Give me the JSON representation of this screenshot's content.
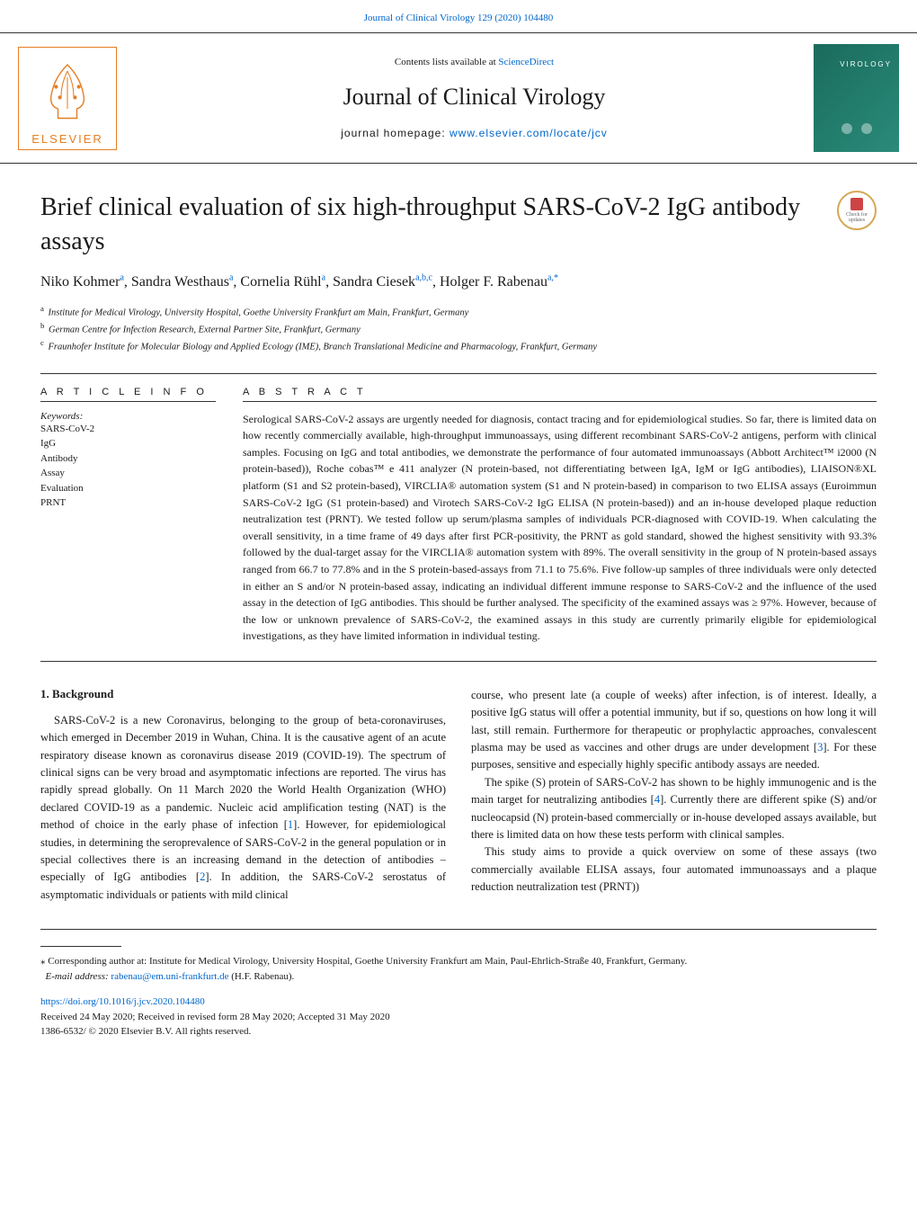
{
  "colors": {
    "link": "#0066cc",
    "elsevier_orange": "#e67e22",
    "cover_teal": "#2a8b7a",
    "badge_gold": "#d4a853",
    "text": "#1a1a1a"
  },
  "top_link": {
    "text": "Journal of Clinical Virology 129 (2020) 104480",
    "href": "#"
  },
  "header": {
    "publisher_logo_text": "ELSEVIER",
    "contents_prefix": "Contents lists available at ",
    "contents_link": "ScienceDirect",
    "journal_title": "Journal of Clinical Virology",
    "homepage_prefix": "journal homepage: ",
    "homepage_link": "www.elsevier.com/locate/jcv",
    "cover_label": "VIROLOGY"
  },
  "article": {
    "title": "Brief clinical evaluation of six high-throughput SARS-CoV-2 IgG antibody assays",
    "badge": {
      "line1": "Check for",
      "line2": "updates"
    },
    "authors_html": "Niko Kohmer<sup>a</sup>, Sandra Westhaus<sup>a</sup>, Cornelia Rühl<sup>a</sup>, Sandra Ciesek<sup>a,b,c</sup>, Holger F. Rabenau<sup>a,</sup>",
    "author_asterisk": "*",
    "affiliations": [
      {
        "sup": "a",
        "text": "Institute for Medical Virology, University Hospital, Goethe University Frankfurt am Main, Frankfurt, Germany"
      },
      {
        "sup": "b",
        "text": "German Centre for Infection Research, External Partner Site, Frankfurt, Germany"
      },
      {
        "sup": "c",
        "text": "Fraunhofer Institute for Molecular Biology and Applied Ecology (IME), Branch Translational Medicine and Pharmacology, Frankfurt, Germany"
      }
    ]
  },
  "info": {
    "heading_info": "A R T I C L E  I N F O",
    "heading_abstract": "A B S T R A C T",
    "keywords_label": "Keywords:",
    "keywords": [
      "SARS-CoV-2",
      "IgG",
      "Antibody",
      "Assay",
      "Evaluation",
      "PRNT"
    ]
  },
  "abstract": "Serological SARS-CoV-2 assays are urgently needed for diagnosis, contact tracing and for epidemiological studies. So far, there is limited data on how recently commercially available, high-throughput immunoassays, using different recombinant SARS-CoV-2 antigens, perform with clinical samples. Focusing on IgG and total antibodies, we demonstrate the performance of four automated immunoassays (Abbott Architect™ i2000 (N protein-based)), Roche cobas™ e 411 analyzer (N protein-based, not differentiating between IgA, IgM or IgG antibodies), LIAISON®XL platform (S1 and S2 protein-based), VIRCLIA® automation system (S1 and N protein-based) in comparison to two ELISA assays (Euroimmun SARS-CoV-2 IgG (S1 protein-based) and Virotech SARS-CoV-2 IgG ELISA (N protein-based)) and an in-house developed plaque reduction neutralization test (PRNT). We tested follow up serum/plasma samples of individuals PCR-diagnosed with COVID-19. When calculating the overall sensitivity, in a time frame of 49 days after first PCR-positivity, the PRNT as gold standard, showed the highest sensitivity with 93.3% followed by the dual-target assay for the VIRCLIA® automation system with 89%. The overall sensitivity in the group of N protein-based assays ranged from 66.7 to 77.8% and in the S protein-based-assays from 71.1 to 75.6%. Five follow-up samples of three individuals were only detected in either an S and/or N protein-based assay, indicating an individual different immune response to SARS-CoV-2 and the influence of the used assay in the detection of IgG antibodies. This should be further analysed. The specificity of the examined assays was ≥ 97%. However, because of the low or unknown prevalence of SARS-CoV-2, the examined assays in this study are currently primarily eligible for epidemiological investigations, as they have limited information in individual testing.",
  "body": {
    "section_heading": "1. Background",
    "left_paragraph_pre": "SARS-CoV-2 is a new Coronavirus, belonging to the group of beta-coronaviruses, which emerged in December 2019 in Wuhan, China. It is the causative agent of an acute respiratory disease known as coronavirus disease 2019 (COVID-19). The spectrum of clinical signs can be very broad and asymptomatic infections are reported. The virus has rapidly spread globally. On 11 March 2020 the World Health Organization (WHO) declared COVID-19 as a pandemic. Nucleic acid amplification testing (NAT) is the method of choice in the early phase of infection [",
    "cite1": "1",
    "left_paragraph_mid": "]. However, for epidemiological studies, in determining the seroprevalence of SARS-CoV-2 in the general population or in special collectives there is an increasing demand in the detection of antibodies – especially of IgG antibodies [",
    "cite2": "2",
    "left_paragraph_post": "]. In addition, the SARS-CoV-2 serostatus of asymptomatic individuals or patients with mild clinical",
    "right_p1_pre": "course, who present late (a couple of weeks) after infection, is of interest. Ideally, a positive IgG status will offer a potential immunity, but if so, questions on how long it will last, still remain. Furthermore for therapeutic or prophylactic approaches, convalescent plasma may be used as vaccines and other drugs are under development [",
    "cite3": "3",
    "right_p1_post": "]. For these purposes, sensitive and especially highly specific antibody assays are needed.",
    "right_p2_pre": "The spike (S) protein of SARS-CoV-2 has shown to be highly immunogenic and is the main target for neutralizing antibodies [",
    "cite4": "4",
    "right_p2_post": "]. Currently there are different spike (S) and/or nucleocapsid (N) protein-based commercially or in-house developed assays available, but there is limited data on how these tests perform with clinical samples.",
    "right_p3": "This study aims to provide a quick overview on some of these assays (two commercially available ELISA assays, four automated immunoassays and a plaque reduction neutralization test (PRNT))"
  },
  "corresponding": {
    "marker": "⁎",
    "text": "Corresponding author at: Institute for Medical Virology, University Hospital, Goethe University Frankfurt am Main, Paul-Ehrlich-Straße 40, Frankfurt, Germany.",
    "email_label": "E-mail address: ",
    "email": "rabenau@em.uni-frankfurt.de",
    "email_suffix": " (H.F. Rabenau)."
  },
  "footer": {
    "doi": "https://doi.org/10.1016/j.jcv.2020.104480",
    "received": "Received 24 May 2020; Received in revised form 28 May 2020; Accepted 31 May 2020",
    "copyright": "1386-6532/ © 2020 Elsevier B.V. All rights reserved."
  }
}
